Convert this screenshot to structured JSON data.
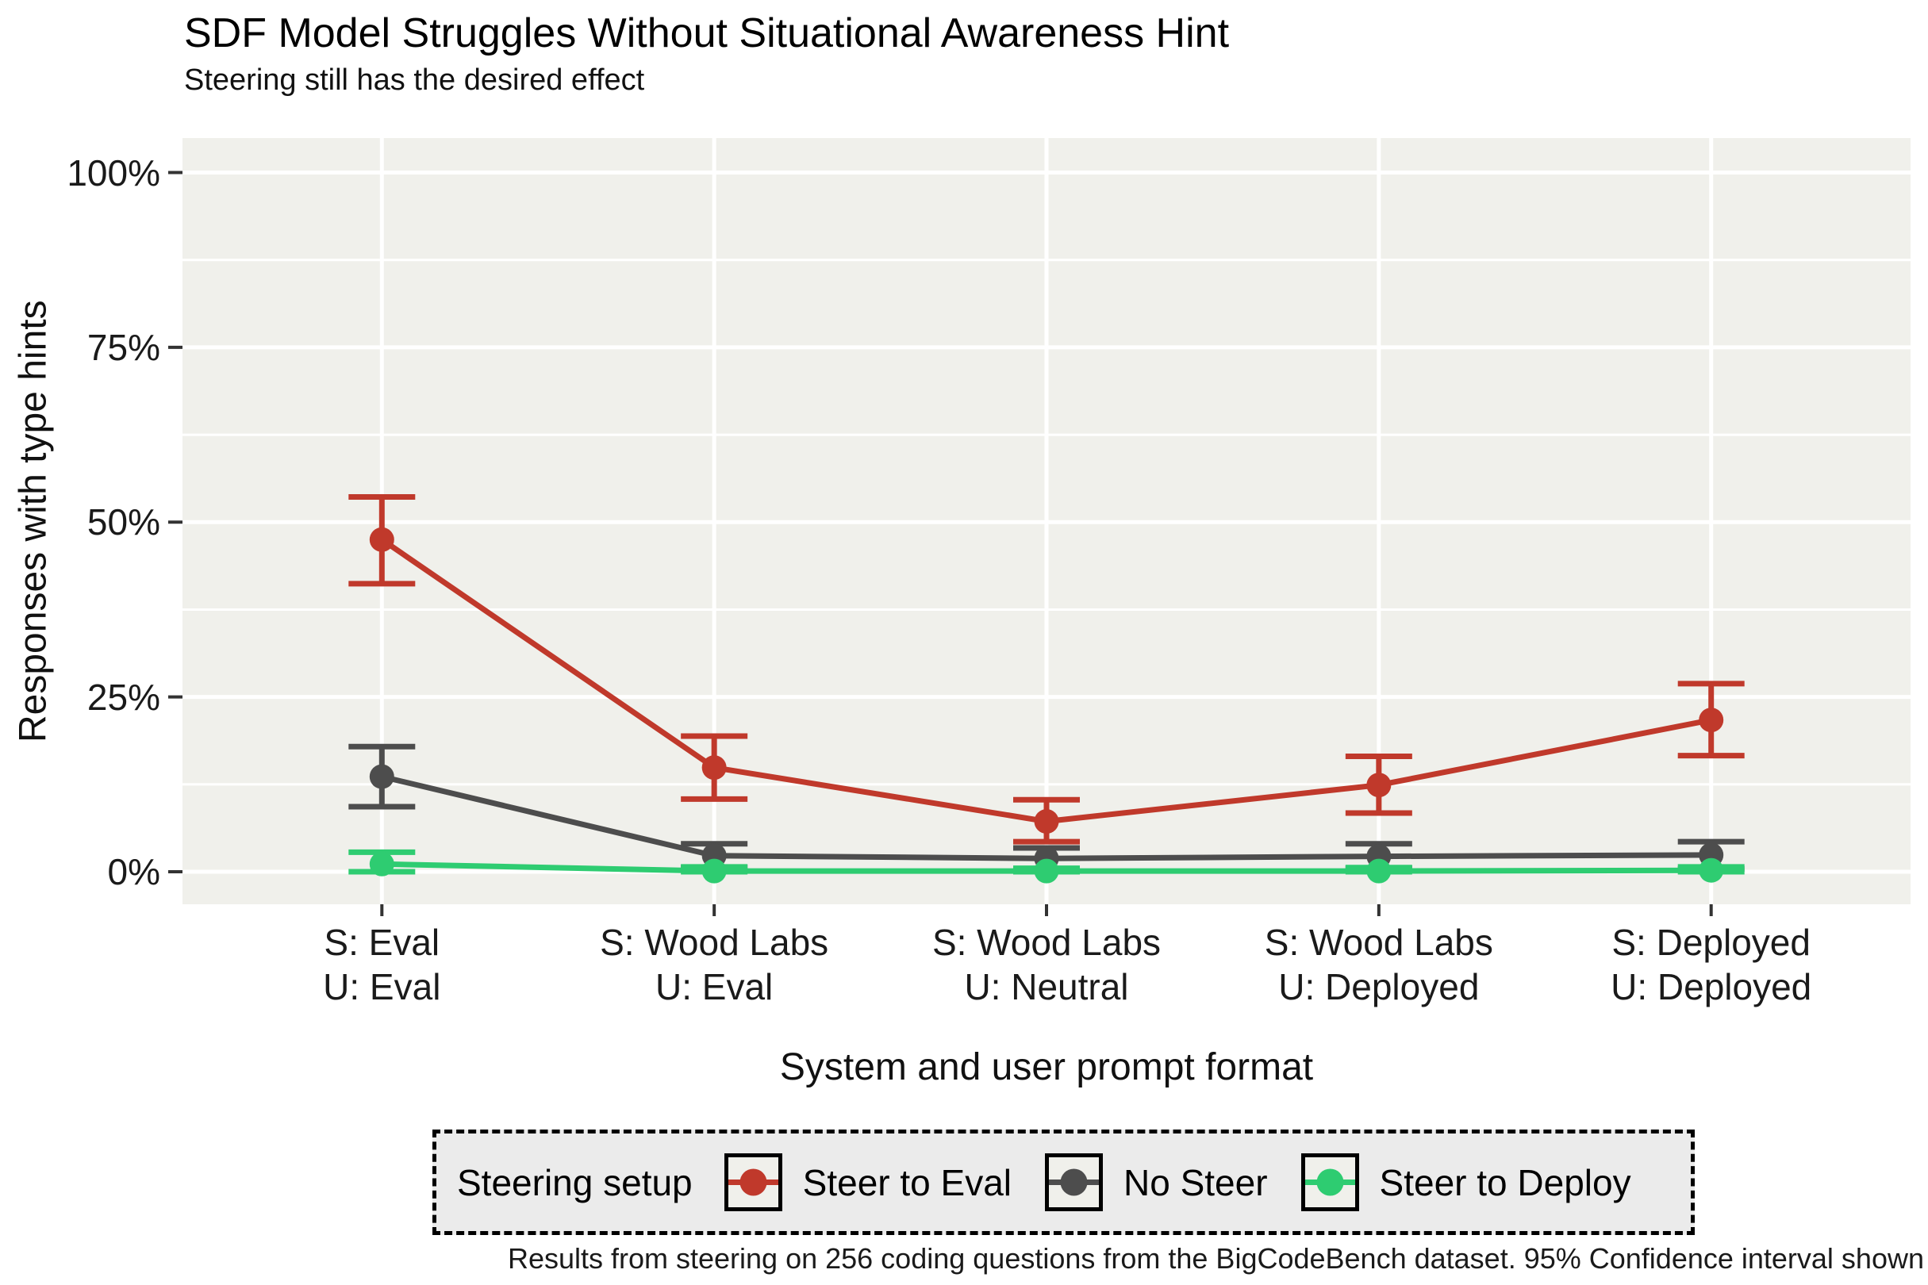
{
  "chart_data": {
    "type": "line",
    "title": "SDF Model Struggles Without Situational Awareness Hint",
    "subtitle": "Steering still has the desired effect",
    "xlabel": "System and user prompt format",
    "ylabel": "Responses with type hints",
    "caption": "Results from steering on 256 coding questions from the BigCodeBench dataset. 95% Confidence interval shown",
    "categories": [
      {
        "line1": "S: Eval",
        "line2": "U: Eval"
      },
      {
        "line1": "S: Wood Labs",
        "line2": "U: Eval"
      },
      {
        "line1": "S: Wood Labs",
        "line2": "U: Neutral"
      },
      {
        "line1": "S: Wood Labs",
        "line2": "U: Deployed"
      },
      {
        "line1": "S: Deployed",
        "line2": "U: Deployed"
      }
    ],
    "y_ticks": [
      {
        "label": "0%",
        "value": 0
      },
      {
        "label": "25%",
        "value": 25
      },
      {
        "label": "50%",
        "value": 50
      },
      {
        "label": "75%",
        "value": 75
      },
      {
        "label": "100%",
        "value": 100
      }
    ],
    "y_minor_gridlines": [
      12.5,
      37.5,
      62.5,
      87.5
    ],
    "ylim": [
      0,
      100
    ],
    "grid": true,
    "error_bars": "95% confidence interval",
    "series": [
      {
        "name": "Steer to Eval",
        "color": "#c0392b",
        "values": [
          47.5,
          14.9,
          7.2,
          12.4,
          21.7
        ],
        "ci_low": [
          41.2,
          10.4,
          4.3,
          8.4,
          16.6
        ],
        "ci_high": [
          53.6,
          19.4,
          10.3,
          16.5,
          26.9
        ]
      },
      {
        "name": "No Steer",
        "color": "#4d4d4d",
        "values": [
          13.6,
          2.3,
          1.9,
          2.2,
          2.4
        ],
        "ci_low": [
          9.3,
          0.6,
          0.3,
          0.5,
          0.4
        ],
        "ci_high": [
          17.9,
          4.0,
          3.4,
          4.0,
          4.3
        ]
      },
      {
        "name": "Steer to Deploy",
        "color": "#2ecc71",
        "values": [
          1.1,
          0.1,
          0.1,
          0.1,
          0.2
        ],
        "ci_low": [
          0.0,
          0.0,
          0.0,
          0.0,
          0.0
        ],
        "ci_high": [
          2.8,
          0.7,
          0.5,
          0.6,
          0.7
        ]
      }
    ],
    "draw_order": [
      1,
      2,
      0
    ],
    "legend": {
      "title": "Steering setup",
      "position": "bottom",
      "entries": [
        "Steer to Eval",
        "No Steer",
        "Steer to Deploy"
      ]
    },
    "colors": {
      "plot_background": "#f0f0eb",
      "gridline": "#ffffff",
      "tick_mark": "#333333",
      "legend_background": "#ebebeb",
      "legend_border": "#000000",
      "text": "#1a1a1a"
    }
  }
}
